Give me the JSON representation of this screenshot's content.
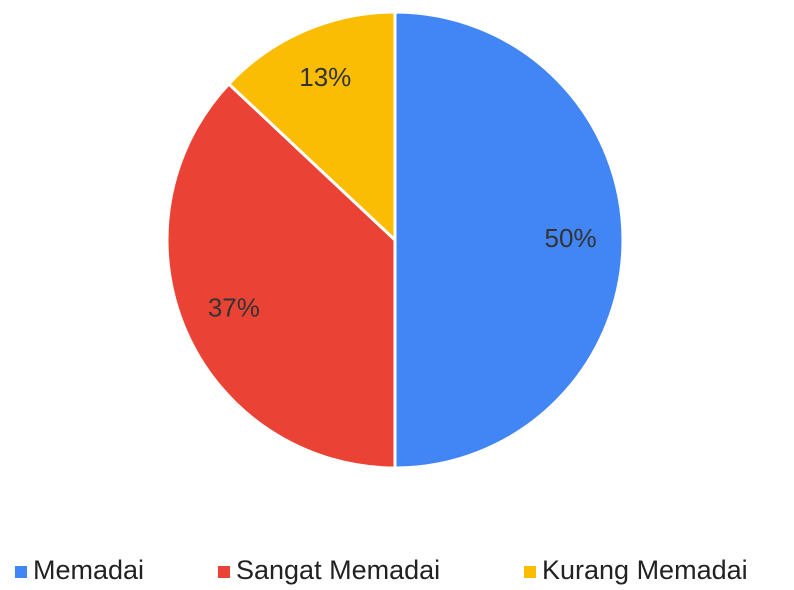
{
  "chart_data": {
    "type": "pie",
    "categories": [
      "Memadai",
      "Sangat Memadai",
      "Kurang Memadai"
    ],
    "values": [
      50,
      37,
      13
    ],
    "value_labels": [
      "50%",
      "37%",
      "13%"
    ],
    "colors": [
      "#4285f4",
      "#ea4335",
      "#fbbc04"
    ],
    "legend": "bottom"
  }
}
